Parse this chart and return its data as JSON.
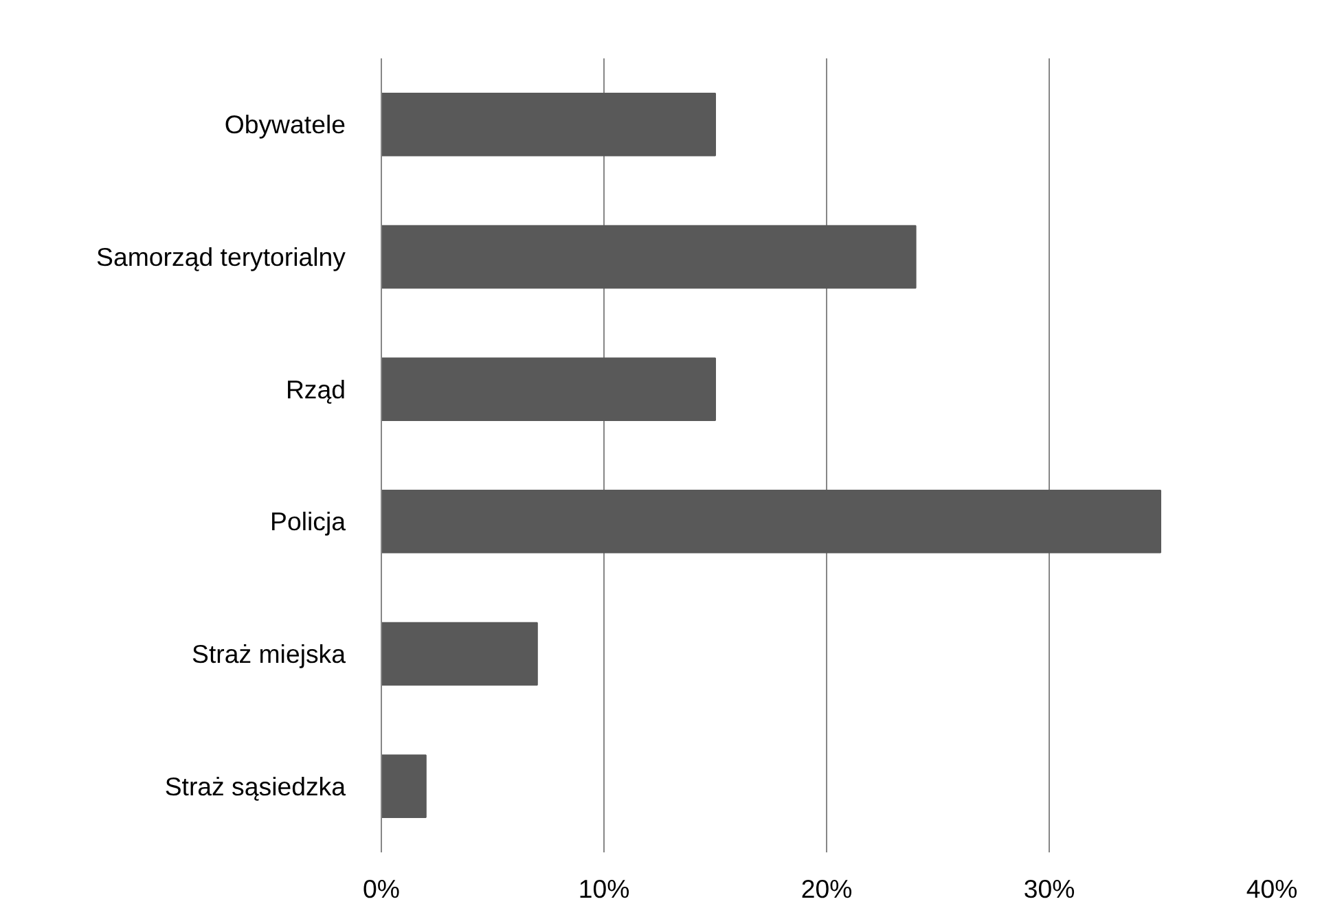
{
  "chart_data": {
    "type": "bar",
    "orientation": "horizontal",
    "categories": [
      "Obywatele",
      "Samorząd terytorialny",
      "Rząd",
      "Policja",
      "Straż miejska",
      "Straż sąsiedzka"
    ],
    "values": [
      15,
      24,
      15,
      35,
      7,
      2
    ],
    "color": "#595959",
    "xlim": [
      0,
      40
    ],
    "xticks": [
      {
        "value": 0,
        "label": "0%"
      },
      {
        "value": 10,
        "label": "10%"
      },
      {
        "value": 20,
        "label": "20%"
      },
      {
        "value": 30,
        "label": "30%"
      },
      {
        "value": 40,
        "label": "40%"
      }
    ],
    "grid": "x"
  }
}
